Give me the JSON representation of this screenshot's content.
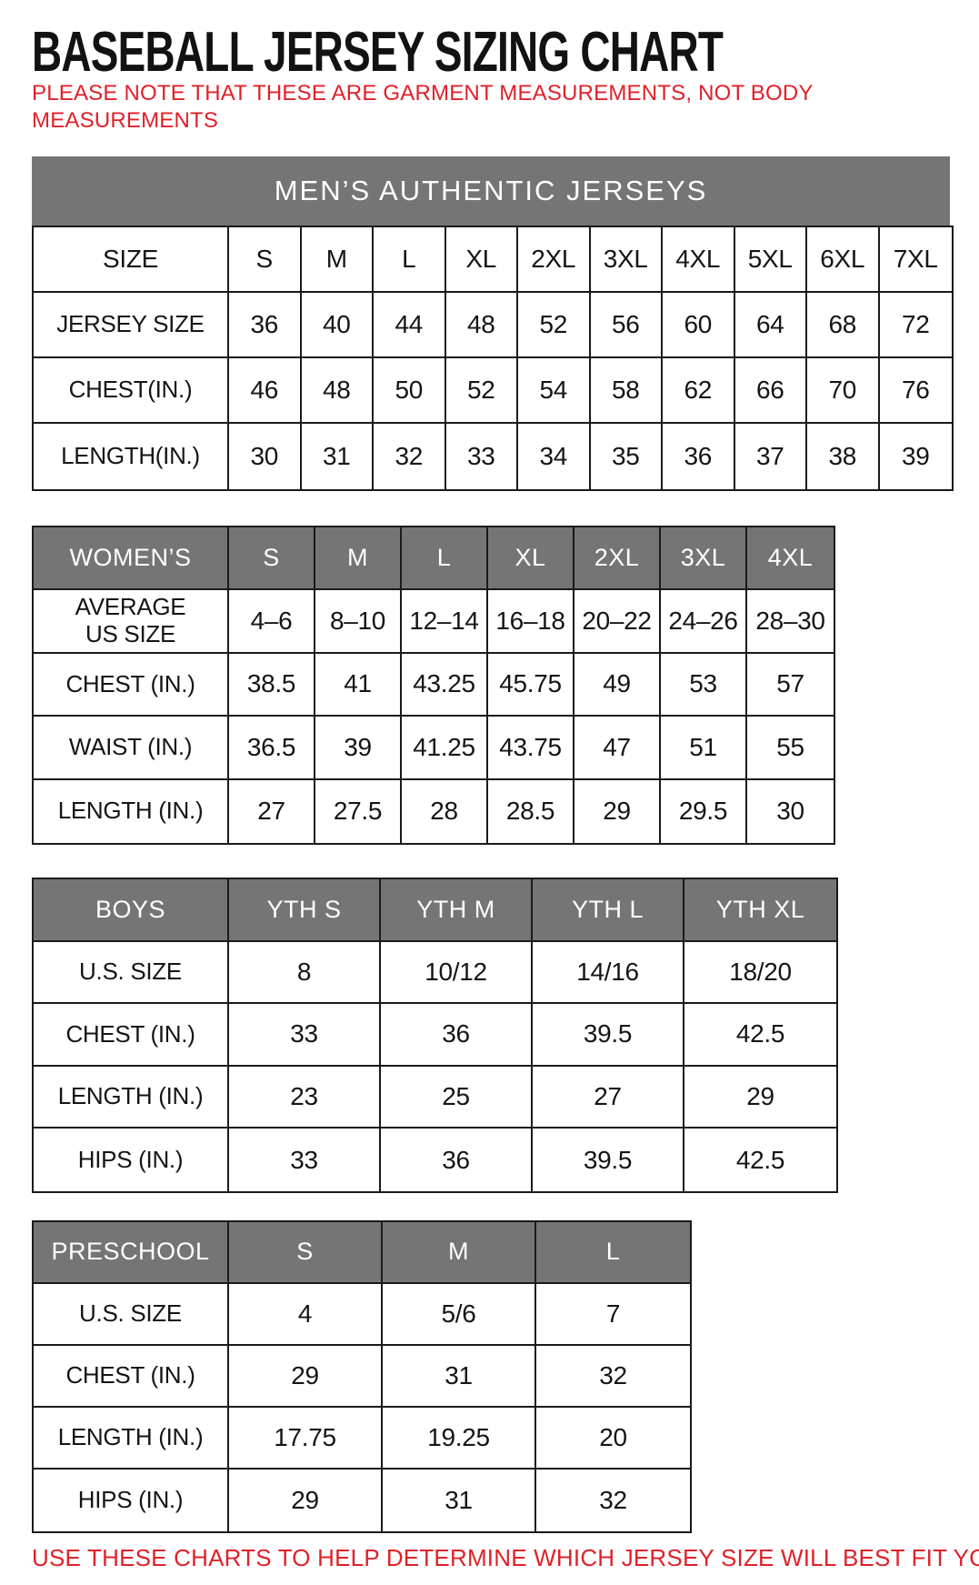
{
  "page": {
    "title": "BASEBALL JERSEY SIZING CHART",
    "note": "PLEASE NOTE THAT THESE ARE GARMENT MEASUREMENTS, NOT BODY MEASUREMENTS",
    "footer": "USE THESE CHARTS TO HELP DETERMINE WHICH JERSEY SIZE WILL BEST FIT YOU.",
    "colors": {
      "accent_red": "#e02129",
      "header_gray": "#757575",
      "border_black": "#1a1a1a"
    }
  },
  "chart_data": [
    {
      "type": "table",
      "id": "mens",
      "title": "MEN’S AUTHENTIC JERSEYS",
      "shaded_header": false,
      "header_row": [
        "SIZE",
        "S",
        "M",
        "L",
        "XL",
        "2XL",
        "3XL",
        "4XL",
        "5XL",
        "6XL",
        "7XL"
      ],
      "rows": [
        {
          "label": "JERSEY SIZE",
          "values": [
            "36",
            "40",
            "44",
            "48",
            "52",
            "56",
            "60",
            "64",
            "68",
            "72"
          ]
        },
        {
          "label": "CHEST(IN.)",
          "values": [
            "46",
            "48",
            "50",
            "52",
            "54",
            "58",
            "62",
            "66",
            "70",
            "76"
          ]
        },
        {
          "label": "LENGTH(IN.)",
          "values": [
            "30",
            "31",
            "32",
            "33",
            "34",
            "35",
            "36",
            "37",
            "38",
            "39"
          ]
        }
      ]
    },
    {
      "type": "table",
      "id": "womens",
      "shaded_header": true,
      "header_row": [
        "WOMEN’S",
        "S",
        "M",
        "L",
        "XL",
        "2XL",
        "3XL",
        "4XL"
      ],
      "rows": [
        {
          "label": "AVERAGE\nUS SIZE",
          "values": [
            "4–6",
            "8–10",
            "12–14",
            "16–18",
            "20–22",
            "24–26",
            "28–30"
          ]
        },
        {
          "label": "CHEST (IN.)",
          "values": [
            "38.5",
            "41",
            "43.25",
            "45.75",
            "49",
            "53",
            "57"
          ]
        },
        {
          "label": "WAIST (IN.)",
          "values": [
            "36.5",
            "39",
            "41.25",
            "43.75",
            "47",
            "51",
            "55"
          ]
        },
        {
          "label": "LENGTH (IN.)",
          "values": [
            "27",
            "27.5",
            "28",
            "28.5",
            "29",
            "29.5",
            "30"
          ]
        }
      ]
    },
    {
      "type": "table",
      "id": "boys",
      "shaded_header": true,
      "header_row": [
        "BOYS",
        "YTH S",
        "YTH M",
        "YTH L",
        "YTH XL"
      ],
      "rows": [
        {
          "label": "U.S. SIZE",
          "values": [
            "8",
            "10/12",
            "14/16",
            "18/20"
          ]
        },
        {
          "label": "CHEST (IN.)",
          "values": [
            "33",
            "36",
            "39.5",
            "42.5"
          ]
        },
        {
          "label": "LENGTH (IN.)",
          "values": [
            "23",
            "25",
            "27",
            "29"
          ]
        },
        {
          "label": "HIPS (IN.)",
          "values": [
            "33",
            "36",
            "39.5",
            "42.5"
          ]
        }
      ]
    },
    {
      "type": "table",
      "id": "preschool",
      "shaded_header": true,
      "header_row": [
        "PRESCHOOL",
        "S",
        "M",
        "L"
      ],
      "rows": [
        {
          "label": "U.S. SIZE",
          "values": [
            "4",
            "5/6",
            "7"
          ]
        },
        {
          "label": "CHEST (IN.)",
          "values": [
            "29",
            "31",
            "32"
          ]
        },
        {
          "label": "LENGTH (IN.)",
          "values": [
            "17.75",
            "19.25",
            "20"
          ]
        },
        {
          "label": "HIPS (IN.)",
          "values": [
            "29",
            "31",
            "32"
          ]
        }
      ]
    }
  ]
}
